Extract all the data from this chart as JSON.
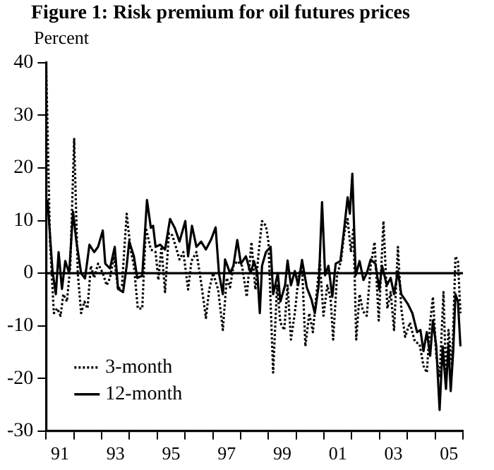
{
  "chart_data": {
    "type": "line",
    "title": "Figure 1: Risk premium for oil futures prices",
    "ylabel": "Percent",
    "xlim": [
      1990.5,
      2005.5
    ],
    "xticks": [
      {
        "value": 1990.5,
        "label": null
      },
      {
        "value": 1991,
        "label": "91"
      },
      {
        "value": 1991.5,
        "label": null
      },
      {
        "value": 1992.5,
        "label": null
      },
      {
        "value": 1993,
        "label": "93"
      },
      {
        "value": 1993.5,
        "label": null
      },
      {
        "value": 1994.5,
        "label": null
      },
      {
        "value": 1995,
        "label": "95"
      },
      {
        "value": 1995.5,
        "label": null
      },
      {
        "value": 1996.5,
        "label": null
      },
      {
        "value": 1997,
        "label": "97"
      },
      {
        "value": 1997.5,
        "label": null
      },
      {
        "value": 1998.5,
        "label": null
      },
      {
        "value": 1999,
        "label": "99"
      },
      {
        "value": 1999.5,
        "label": null
      },
      {
        "value": 2000.5,
        "label": null
      },
      {
        "value": 2001,
        "label": "01"
      },
      {
        "value": 2001.5,
        "label": null
      },
      {
        "value": 2002.5,
        "label": null
      },
      {
        "value": 2003,
        "label": "03"
      },
      {
        "value": 2003.5,
        "label": null
      },
      {
        "value": 2004.5,
        "label": null
      },
      {
        "value": 2005,
        "label": "05"
      },
      {
        "value": 2005.5,
        "label": null
      }
    ],
    "ylim": [
      -30,
      40
    ],
    "yticks": [
      -30,
      -20,
      -10,
      0,
      10,
      20,
      30,
      40
    ],
    "grid": false,
    "legend": "bottom left",
    "marker": "none",
    "ref_lines": [
      {
        "axis": "y",
        "value": 0,
        "color": "#000000",
        "line_style": "solid"
      }
    ],
    "series": [
      {
        "name": "3-month",
        "color": "#000000",
        "line_style": "dotted",
        "x": [
          1990.5,
          1990.64,
          1990.78,
          1990.9,
          1991.02,
          1991.12,
          1991.25,
          1991.37,
          1991.51,
          1991.64,
          1991.76,
          1991.88,
          1991.99,
          1992.11,
          1992.23,
          1992.37,
          1992.54,
          1992.68,
          1992.8,
          1992.94,
          1993.09,
          1993.23,
          1993.4,
          1993.54,
          1993.66,
          1993.8,
          1993.96,
          1994.09,
          1994.27,
          1994.44,
          1994.54,
          1994.65,
          1994.78,
          1994.92,
          1995.04,
          1995.17,
          1995.3,
          1995.44,
          1995.61,
          1995.73,
          1995.91,
          1996.08,
          1996.25,
          1996.37,
          1996.51,
          1996.69,
          1996.86,
          1997.0,
          1997.12,
          1997.24,
          1997.38,
          1997.55,
          1997.72,
          1997.89,
          1998.03,
          1998.15,
          1998.27,
          1998.41,
          1998.5,
          1998.67,
          1998.81,
          1998.93,
          1999.07,
          1999.19,
          1999.31,
          1999.45,
          1999.59,
          1999.71,
          1999.83,
          1999.97,
          2000.1,
          2000.23,
          2000.35,
          2000.48,
          2000.62,
          2000.74,
          2000.83,
          2000.97,
          2001.11,
          2001.23,
          2001.35,
          2001.47,
          2001.56,
          2001.66,
          2001.78,
          2001.9,
          2002.04,
          2002.18,
          2002.32,
          2002.47,
          2002.64,
          2002.78,
          2002.9,
          2003.02,
          2003.16,
          2003.28,
          2003.42,
          2003.59,
          2003.77,
          2003.94,
          2004.08,
          2004.2,
          2004.32,
          2004.42,
          2004.54,
          2004.66,
          2004.8,
          2004.89,
          2004.98,
          2005.11,
          2005.23,
          2005.32,
          2005.41
        ],
        "values": [
          40,
          6,
          -7.6,
          -6.7,
          -8.1,
          -4,
          -5.4,
          1.4,
          25.5,
          0,
          -7.6,
          -5.4,
          -6.7,
          1.4,
          -0.9,
          1.8,
          0,
          -2.3,
          -0.9,
          3.2,
          -3.1,
          -2.3,
          11.3,
          4.5,
          1.4,
          -6.7,
          -6.7,
          8.6,
          4.5,
          4,
          -1.3,
          5,
          -3.6,
          7.6,
          7.2,
          5,
          2.6,
          4,
          -3.1,
          2.3,
          4,
          -1.8,
          -8.5,
          -3.1,
          0,
          -3.1,
          -10.8,
          -0.9,
          -2.7,
          1.4,
          2.3,
          1.4,
          -4.5,
          5.9,
          -3.1,
          4,
          9.9,
          9,
          6,
          -18.9,
          -2.3,
          -9.4,
          -10.8,
          -2.3,
          -12.6,
          -7.6,
          -0.4,
          1.4,
          -13.9,
          -7.6,
          -11.2,
          -4,
          2.3,
          -8.1,
          -2.3,
          -5,
          -12.6,
          -0.4,
          2.3,
          7.6,
          10.3,
          4,
          8.6,
          -12.6,
          -4,
          -7.2,
          -8.1,
          1.4,
          5.9,
          -9,
          9.9,
          -6.7,
          -3.6,
          -10.8,
          5,
          -6.7,
          -12.1,
          -9.4,
          -13,
          -13.5,
          -17.6,
          -18.9,
          -9.4,
          -4.5,
          -15.7,
          -19.8,
          -3.6,
          -20.2,
          -10.8,
          -17.6,
          3.2,
          2.3,
          -7.6
        ]
      },
      {
        "name": "12-month",
        "color": "#000000",
        "line_style": "solid",
        "x": [
          1990.55,
          1990.73,
          1990.85,
          1990.95,
          1991.07,
          1991.19,
          1991.33,
          1991.47,
          1991.59,
          1991.76,
          1991.9,
          1992.06,
          1992.23,
          1992.37,
          1992.54,
          1992.63,
          1992.8,
          1992.97,
          1993.09,
          1993.27,
          1993.4,
          1993.49,
          1993.66,
          1993.78,
          1993.96,
          1994.13,
          1994.27,
          1994.35,
          1994.44,
          1994.61,
          1994.78,
          1994.96,
          1995.13,
          1995.3,
          1995.51,
          1995.61,
          1995.75,
          1995.91,
          1996.08,
          1996.25,
          1996.43,
          1996.6,
          1996.72,
          1996.86,
          1996.94,
          1997.12,
          1997.24,
          1997.38,
          1997.51,
          1997.69,
          1997.86,
          1997.98,
          1998.1,
          1998.19,
          1998.27,
          1998.41,
          1998.58,
          1998.67,
          1998.84,
          1998.93,
          1999.1,
          1999.19,
          1999.31,
          1999.45,
          1999.57,
          1999.71,
          1999.88,
          2000.05,
          2000.17,
          2000.31,
          2000.43,
          2000.54,
          2000.66,
          2000.8,
          2000.92,
          2001.09,
          2001.23,
          2001.35,
          2001.43,
          2001.52,
          2001.64,
          2001.78,
          2001.92,
          2002.04,
          2002.18,
          2002.35,
          2002.49,
          2002.59,
          2002.76,
          2002.9,
          2003.02,
          2003.16,
          2003.28,
          2003.51,
          2003.68,
          2003.85,
          2003.97,
          2004.08,
          2004.2,
          2004.32,
          2004.42,
          2004.54,
          2004.66,
          2004.77,
          2004.89,
          2004.98,
          2005.06,
          2005.15,
          2005.23,
          2005.32,
          2005.41
        ],
        "values": [
          14,
          0.5,
          -4,
          4,
          -3,
          2.3,
          0,
          11.7,
          6,
          0,
          -1,
          5.4,
          4,
          5,
          8.1,
          1.8,
          0.9,
          5,
          -3,
          -3.6,
          1.4,
          6,
          3.2,
          -0.9,
          -0.5,
          13.9,
          8.6,
          9,
          5,
          5.4,
          4.5,
          10.3,
          8.6,
          6,
          9.9,
          3.2,
          9,
          5,
          6,
          4.5,
          6.3,
          8.7,
          0,
          -4,
          2.6,
          0,
          1.4,
          6.3,
          1.8,
          3.2,
          0,
          2.3,
          0,
          -7.6,
          1.4,
          4,
          5,
          -4,
          0,
          -5.4,
          -2.3,
          2.4,
          -2.3,
          0.4,
          -2.3,
          2.5,
          -2.7,
          -5,
          -7.6,
          -2.3,
          13.5,
          -0.4,
          1.4,
          -4.5,
          1.8,
          2.3,
          8.6,
          14.4,
          11.3,
          18.9,
          -0.4,
          2.3,
          -1.3,
          0,
          2.6,
          1.8,
          -3.1,
          1.4,
          -2.3,
          -0.9,
          -4,
          0.4,
          -4,
          -5.8,
          -7.6,
          -11.2,
          -10.8,
          -14.8,
          -11.2,
          -15.7,
          -9,
          -13.9,
          -26,
          -13.9,
          -22,
          -13.5,
          -22.4,
          -14.8,
          -4,
          -5.4,
          -13.9
        ]
      }
    ]
  }
}
